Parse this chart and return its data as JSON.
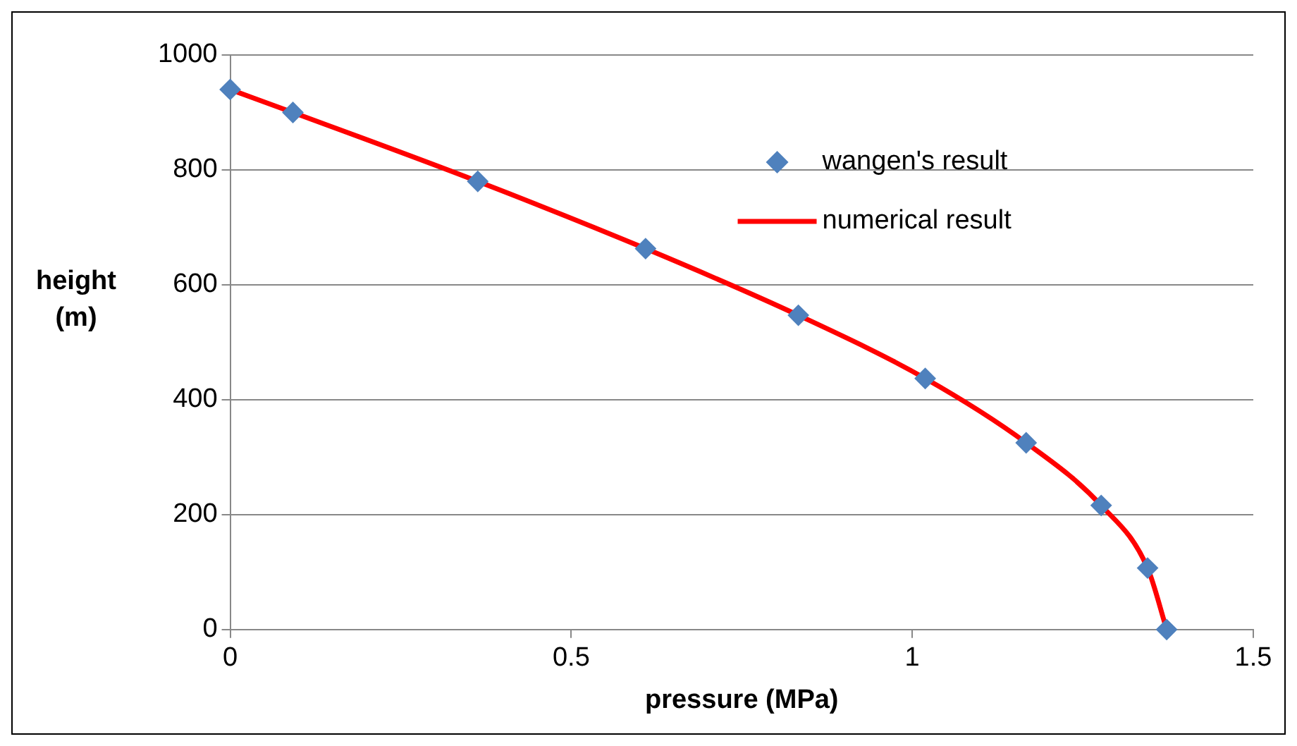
{
  "chart_data": {
    "type": "scatter",
    "xlabel": "pressure (MPa)",
    "ylabel": "height\n(m)",
    "xlim": [
      0,
      1.5
    ],
    "xticks": [
      0,
      0.5,
      1,
      1.5
    ],
    "ylim": [
      0,
      1000
    ],
    "yticks": [
      0,
      200,
      400,
      600,
      800,
      1000
    ],
    "grid": "y",
    "legend": "top right",
    "series": [
      {
        "name": "wangen's result",
        "type": "scatter",
        "marker": "diamond",
        "color": "#4f81bd",
        "x": [
          0,
          0.092,
          0.363,
          0.609,
          0.833,
          1.019,
          1.167,
          1.277,
          1.345,
          1.373
        ],
        "values": [
          940,
          900,
          780,
          663,
          547,
          437,
          325,
          216,
          107,
          0
        ]
      },
      {
        "name": "numerical result",
        "type": "line",
        "marker": "none",
        "color": "#ff0000",
        "line_style": "solid",
        "x": [
          0,
          0.092,
          0.363,
          0.609,
          0.833,
          1.019,
          1.167,
          1.277,
          1.345,
          1.373
        ],
        "values": [
          940,
          900,
          780,
          663,
          547,
          437,
          325,
          216,
          107,
          0
        ]
      }
    ]
  }
}
